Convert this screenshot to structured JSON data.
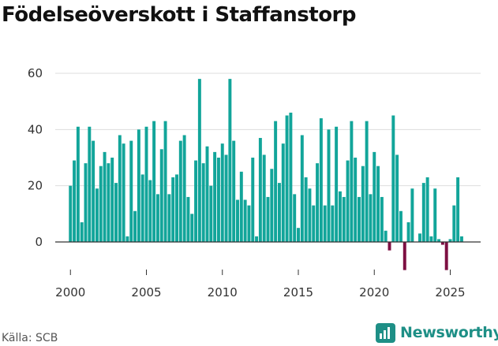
{
  "header": {
    "title": "Födelseöverskott i Staffanstorp"
  },
  "footer": {
    "source": "Källa: SCB",
    "brand": "Newsworthy"
  },
  "colors": {
    "positive": "#12a59a",
    "negative": "#7d0f42",
    "grid": "#dddddd",
    "axis": "#333333",
    "brand": "#1e8f86"
  },
  "icons": {
    "brand_logo": "newsworthy-chart-icon"
  },
  "chart_data": {
    "type": "bar",
    "title": "Födelseöverskott i Staffanstorp",
    "xlabel": "",
    "ylabel": "",
    "x_unit": "year (quarterly bars, 2000 Q1 – 2026 Q1)",
    "xlim": [
      1999.0,
      2027.0
    ],
    "ylim": [
      -10,
      60
    ],
    "yticks": [
      0,
      20,
      40,
      60
    ],
    "xticks": [
      2000,
      2005,
      2010,
      2015,
      2020,
      2025
    ],
    "grid": true,
    "legend": "none",
    "start": 2000.0,
    "step": 0.25,
    "values": [
      20,
      29,
      41,
      7,
      28,
      41,
      36,
      19,
      27,
      32,
      28,
      30,
      21,
      38,
      35,
      2,
      36,
      11,
      40,
      24,
      41,
      22,
      43,
      17,
      33,
      43,
      17,
      23,
      24,
      36,
      38,
      16,
      10,
      29,
      58,
      28,
      34,
      20,
      32,
      30,
      35,
      31,
      58,
      36,
      15,
      25,
      15,
      13,
      30,
      2,
      37,
      31,
      16,
      26,
      43,
      21,
      35,
      45,
      46,
      17,
      5,
      38,
      23,
      19,
      13,
      28,
      44,
      13,
      40,
      13,
      41,
      18,
      16,
      29,
      43,
      30,
      16,
      27,
      43,
      17,
      32,
      27,
      16,
      4,
      -3,
      45,
      31,
      11,
      -10,
      7,
      19,
      0,
      3,
      21,
      23,
      2,
      19,
      1,
      -1,
      -10,
      1,
      13,
      23,
      2
    ]
  }
}
